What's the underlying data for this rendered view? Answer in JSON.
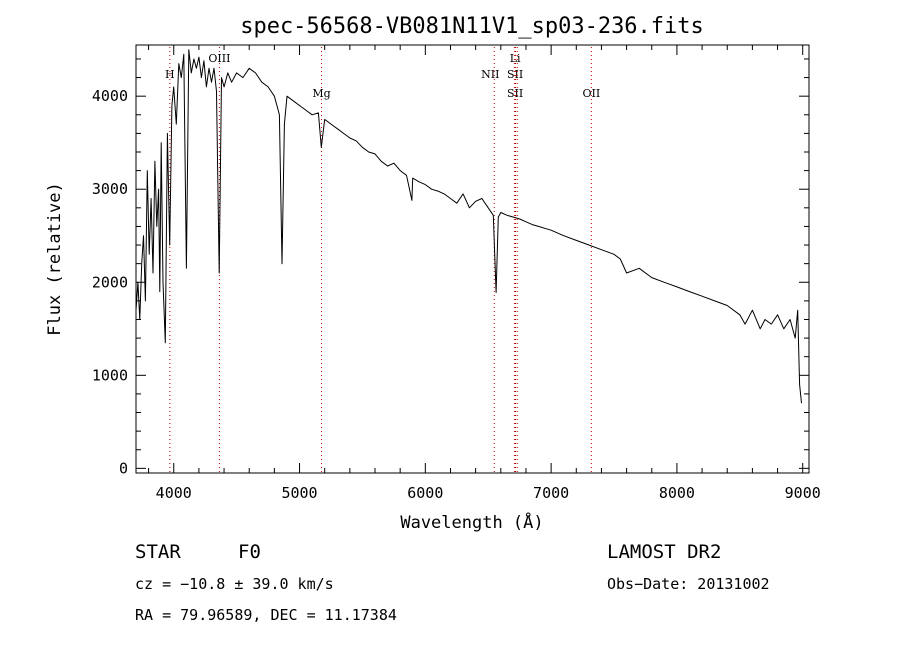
{
  "chart_data": {
    "type": "line",
    "title": "spec-56568-VB081N11V1_sp03-236.fits",
    "xlabel": "Wavelength (Å)",
    "ylabel": "Flux (relative)",
    "xlim": [
      3700,
      9050
    ],
    "ylim": [
      -50,
      4550
    ],
    "x_ticks": [
      4000,
      5000,
      6000,
      7000,
      8000,
      9000
    ],
    "y_ticks": [
      0,
      1000,
      2000,
      3000,
      4000
    ],
    "grid": false,
    "series": [
      {
        "x": [
          3700,
          3715,
          3730,
          3745,
          3760,
          3775,
          3790,
          3805,
          3820,
          3835,
          3850,
          3865,
          3880,
          3889,
          3900,
          3915,
          3933,
          3950,
          3968,
          3985,
          4000,
          4020,
          4040,
          4060,
          4080,
          4101,
          4120,
          4140,
          4160,
          4180,
          4200,
          4220,
          4240,
          4260,
          4280,
          4300,
          4320,
          4340,
          4361,
          4380,
          4400,
          4430,
          4460,
          4500,
          4550,
          4600,
          4650,
          4700,
          4750,
          4800,
          4840,
          4861,
          4880,
          4900,
          4950,
          5000,
          5050,
          5100,
          5150,
          5173,
          5200,
          5250,
          5300,
          5350,
          5400,
          5450,
          5500,
          5550,
          5600,
          5650,
          5700,
          5750,
          5800,
          5850,
          5893,
          5900,
          5950,
          6000,
          6050,
          6100,
          6150,
          6200,
          6250,
          6300,
          6350,
          6400,
          6450,
          6500,
          6540,
          6563,
          6580,
          6600,
          6650,
          6700,
          6750,
          6800,
          6850,
          6900,
          6950,
          7000,
          7100,
          7200,
          7300,
          7400,
          7500,
          7550,
          7600,
          7700,
          7800,
          7900,
          8000,
          8100,
          8200,
          8300,
          8400,
          8500,
          8542,
          8600,
          8662,
          8700,
          8750,
          8800,
          8850,
          8900,
          8940,
          8960,
          8975,
          8990
        ],
        "y": [
          1700,
          2000,
          1600,
          2200,
          2500,
          1800,
          3200,
          2300,
          2900,
          2100,
          3300,
          2600,
          3000,
          1900,
          3500,
          2000,
          1350,
          3600,
          2400,
          3900,
          4100,
          3700,
          4350,
          4200,
          4450,
          2150,
          4500,
          4250,
          4400,
          4300,
          4420,
          4200,
          4380,
          4100,
          4300,
          4150,
          4300,
          4050,
          2100,
          4200,
          4100,
          4250,
          4150,
          4250,
          4200,
          4300,
          4250,
          4150,
          4100,
          4000,
          3800,
          2200,
          3700,
          4000,
          3950,
          3900,
          3850,
          3800,
          3820,
          3450,
          3750,
          3700,
          3650,
          3600,
          3550,
          3520,
          3450,
          3400,
          3380,
          3300,
          3250,
          3280,
          3200,
          3150,
          2880,
          3120,
          3080,
          3050,
          3000,
          2980,
          2950,
          2900,
          2850,
          2950,
          2800,
          2870,
          2900,
          2800,
          2720,
          1890,
          2700,
          2750,
          2720,
          2700,
          2680,
          2650,
          2620,
          2600,
          2580,
          2560,
          2500,
          2450,
          2400,
          2350,
          2300,
          2250,
          2100,
          2150,
          2050,
          2000,
          1950,
          1900,
          1850,
          1800,
          1750,
          1650,
          1550,
          1700,
          1500,
          1600,
          1550,
          1650,
          1500,
          1600,
          1400,
          1700,
          900,
          700
        ]
      }
    ],
    "reference_lines": [
      {
        "label": "H",
        "wavelength": 3969
      },
      {
        "label": "OIII",
        "wavelength": 4363
      },
      {
        "label": "Mg",
        "wavelength": 5175
      },
      {
        "label": "NII",
        "wavelength": 6548
      },
      {
        "label": "Li",
        "wavelength": 6708
      },
      {
        "label": "SII",
        "wavelength": 6717
      },
      {
        "label": "SII",
        "wavelength": 6731
      },
      {
        "label": "OII",
        "wavelength": 7320
      }
    ]
  },
  "info": {
    "object_class": "STAR",
    "subclass": "F0",
    "survey": "LAMOST DR2",
    "cz": "cz = −10.8 ± 39.0 km/s",
    "obs_date": "Obs−Date: 20131002",
    "coords": "RA =  79.96589, DEC =  11.17384"
  }
}
